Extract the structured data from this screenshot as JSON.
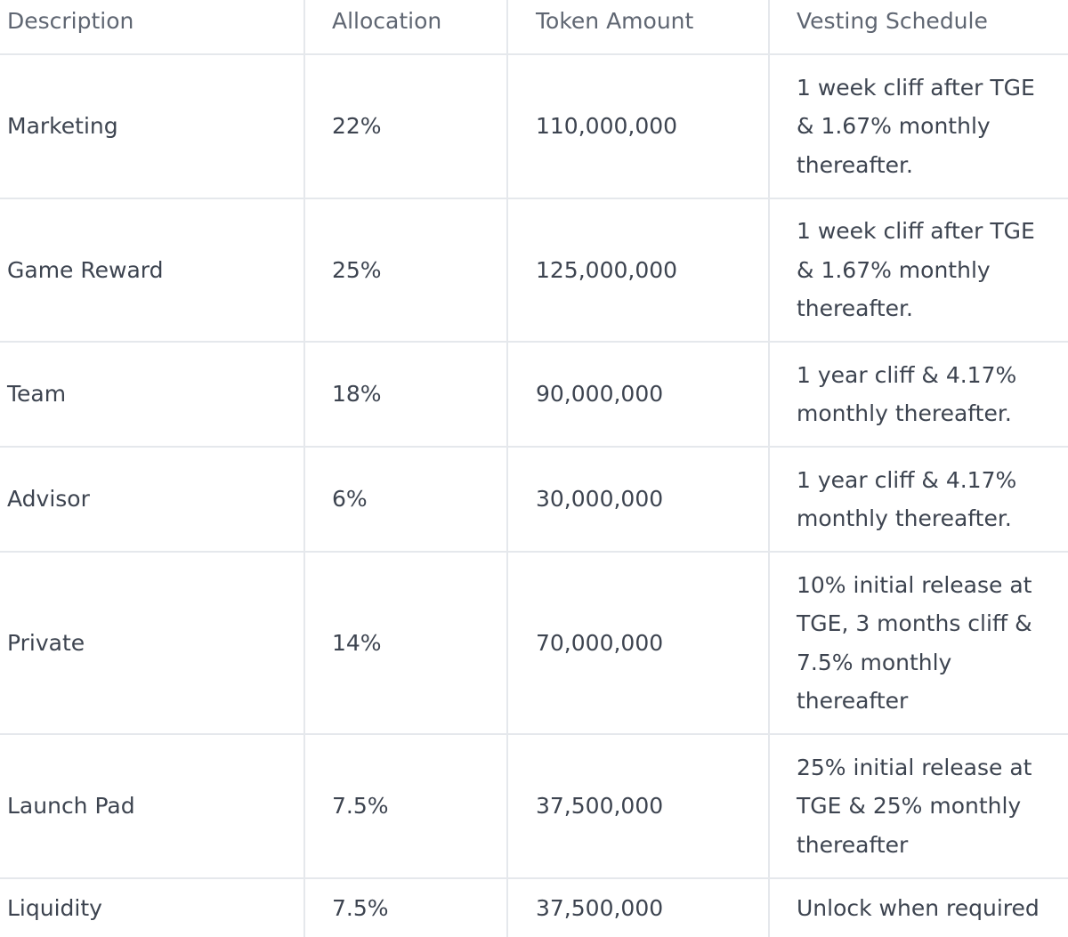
{
  "table": {
    "headers": {
      "description": "Description",
      "allocation": "Allocation",
      "token_amount": "Token Amount",
      "vesting_schedule": "Vesting Schedule"
    },
    "rows": [
      {
        "description": "Marketing",
        "allocation": "22%",
        "token_amount": "110,000,000",
        "vesting_lines": [
          "1 week cliff after TGE",
          "& 1.67% monthly",
          "thereafter."
        ]
      },
      {
        "description": "Game Reward",
        "allocation": "25%",
        "token_amount": "125,000,000",
        "vesting_lines": [
          "1 week cliff after TGE",
          "& 1.67% monthly",
          "thereafter."
        ]
      },
      {
        "description": "Team",
        "allocation": "18%",
        "token_amount": "90,000,000",
        "vesting_lines": [
          "1 year cliff & 4.17%",
          "monthly thereafter."
        ]
      },
      {
        "description": "Advisor",
        "allocation": "6%",
        "token_amount": "30,000,000",
        "vesting_lines": [
          "1 year cliff & 4.17%",
          "monthly thereafter."
        ]
      },
      {
        "description": "Private",
        "allocation": "14%",
        "token_amount": "70,000,000",
        "vesting_lines": [
          "10% initial release at",
          "TGE, 3 months cliff &",
          "7.5% monthly",
          "thereafter"
        ]
      },
      {
        "description": "Launch Pad",
        "allocation": "7.5%",
        "token_amount": "37,500,000",
        "vesting_lines": [
          "25% initial release at",
          "TGE & 25% monthly",
          "thereafter"
        ]
      },
      {
        "description": "Liquidity",
        "allocation": "7.5%",
        "token_amount": "37,500,000",
        "vesting_lines": [
          "Unlock when required"
        ]
      }
    ]
  }
}
